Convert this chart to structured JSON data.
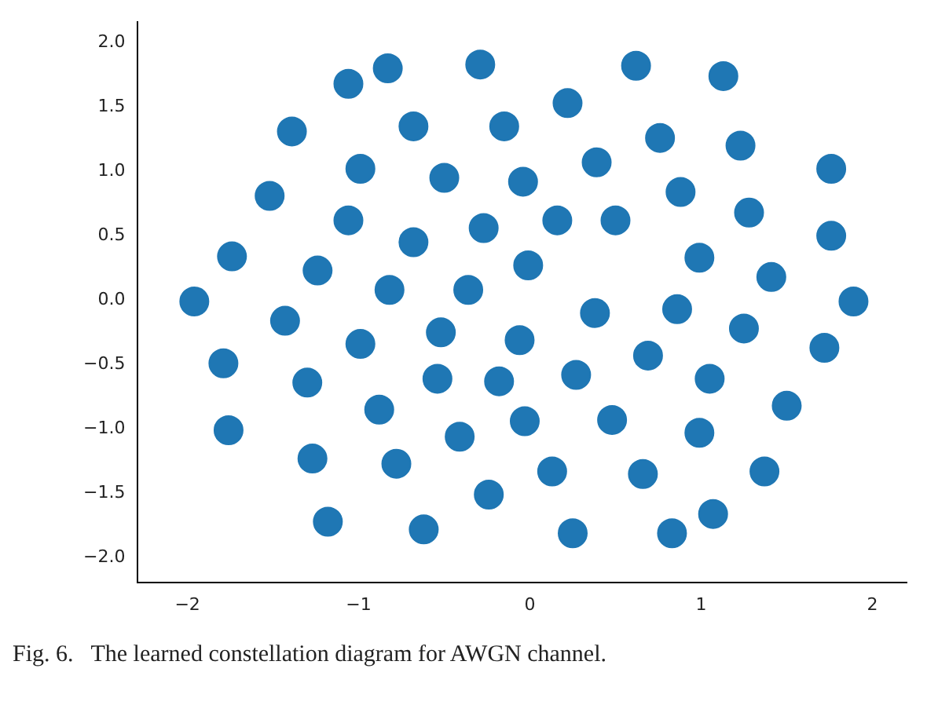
{
  "chart_data": {
    "type": "scatter",
    "marker": "circle",
    "grid": false,
    "legend": false,
    "xlim": [
      -2.29,
      2.2
    ],
    "ylim": [
      -2.19,
      2.16
    ],
    "xticks": [
      {
        "value": -2,
        "label": "−2"
      },
      {
        "value": -1,
        "label": "−1"
      },
      0,
      1,
      2
    ],
    "yticks": [
      {
        "value": -2,
        "label": "−2.0"
      },
      {
        "value": -1.5,
        "label": "−1.5"
      },
      {
        "value": -1,
        "label": "−1.0"
      },
      {
        "value": -0.5,
        "label": "−0.5"
      },
      {
        "value": 0,
        "label": "0.0"
      },
      {
        "value": 0.5,
        "label": "0.5"
      },
      {
        "value": 1,
        "label": "1.0"
      },
      {
        "value": 1.5,
        "label": "1.5"
      },
      {
        "value": 2,
        "label": "2.0"
      }
    ],
    "annotations": [
      "Fig. 6.   The learned constellation diagram for AWGN channel."
    ],
    "series": [
      {
        "color": "#1f77b4",
        "x": [
          -1.06,
          -0.83,
          -0.29,
          0.62,
          1.13,
          -1.39,
          -0.68,
          -0.15,
          0.22,
          0.76,
          1.23,
          1.76,
          -1.52,
          -0.99,
          -0.5,
          -0.04,
          0.39,
          0.88,
          1.28,
          1.76,
          -1.74,
          -1.06,
          -0.68,
          -0.27,
          0.16,
          0.5,
          -0.01,
          0.99,
          1.41,
          -1.96,
          -1.24,
          -0.82,
          -0.36,
          1.89,
          -1.43,
          -0.99,
          -0.52,
          -0.06,
          0.38,
          0.86,
          1.25,
          1.72,
          -1.79,
          -1.3,
          -0.54,
          -0.18,
          0.27,
          0.69,
          1.05,
          -1.76,
          -1.27,
          -0.88,
          -0.41,
          -0.03,
          0.48,
          0.99,
          1.5,
          -0.78,
          0.13,
          0.66,
          1.37,
          -1.18,
          -0.62,
          -0.24,
          0.25,
          0.83,
          1.07
        ],
        "values": [
          1.68,
          1.8,
          1.83,
          1.82,
          1.74,
          1.31,
          1.35,
          1.35,
          1.53,
          1.26,
          1.2,
          1.02,
          0.81,
          1.02,
          0.95,
          0.92,
          1.07,
          0.84,
          0.68,
          0.5,
          0.34,
          0.62,
          0.45,
          0.56,
          0.62,
          0.62,
          0.27,
          0.33,
          0.18,
          -0.01,
          0.23,
          0.08,
          0.08,
          -0.01,
          -0.16,
          -0.34,
          -0.25,
          -0.31,
          -0.1,
          -0.07,
          -0.22,
          -0.37,
          -0.49,
          -0.64,
          -0.61,
          -0.63,
          -0.58,
          -0.43,
          -0.61,
          -1.01,
          -1.23,
          -0.85,
          -1.06,
          -0.94,
          -0.93,
          -1.03,
          -0.82,
          -1.27,
          -1.33,
          -1.35,
          -1.33,
          -1.72,
          -1.78,
          -1.51,
          -1.81,
          -1.81,
          -1.66
        ]
      }
    ]
  }
}
